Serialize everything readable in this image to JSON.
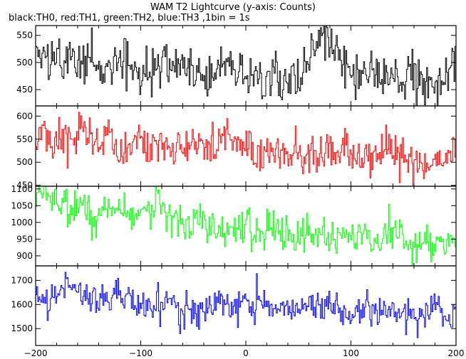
{
  "title": "WAM T2 Lightcurve (y-axis: Counts)",
  "subtitle": "black:TH0, red:TH1, green:TH2, blue:TH3 ,1bin = 1s",
  "chart_data": [
    {
      "type": "line",
      "panel": "TH0",
      "color": "#000000",
      "xlim": [
        -200,
        200
      ],
      "ylim": [
        420,
        568
      ],
      "yticks": [
        450,
        500,
        550
      ],
      "x_start": -200,
      "x_end": 200,
      "bin_seconds": 1,
      "mean_start": 505,
      "mean_end": 475,
      "noise_sd": 21,
      "values_approx": [
        515,
        505,
        500,
        498,
        495,
        490,
        500,
        488,
        482,
        495,
        480,
        470,
        478,
        550,
        480,
        476,
        474,
        472,
        470,
        488
      ]
    },
    {
      "type": "line",
      "panel": "TH1",
      "color": "#ff0000",
      "xlim": [
        -200,
        200
      ],
      "ylim": [
        448,
        622
      ],
      "yticks": [
        450,
        500,
        550,
        600
      ],
      "x_start": -200,
      "x_end": 200,
      "bin_seconds": 1,
      "mean_start": 555,
      "mean_end": 505,
      "noise_sd": 22,
      "values_approx": [
        560,
        555,
        550,
        548,
        545,
        540,
        535,
        530,
        528,
        570,
        520,
        518,
        515,
        512,
        510,
        508,
        505,
        505,
        504,
        505
      ]
    },
    {
      "type": "line",
      "panel": "TH2",
      "color": "#00ff00",
      "xlim": [
        -200,
        200
      ],
      "ylim": [
        870,
        1108
      ],
      "yticks": [
        900,
        950,
        1000,
        1050,
        1100
      ],
      "x_start": -200,
      "x_end": 200,
      "bin_seconds": 1,
      "mean_start": 1050,
      "mean_end": 940,
      "noise_sd": 28,
      "values_approx": [
        1070,
        1055,
        1040,
        1030,
        1020,
        1012,
        1005,
        998,
        990,
        985,
        978,
        970,
        965,
        960,
        955,
        950,
        948,
        945,
        942,
        940
      ]
    },
    {
      "type": "line",
      "panel": "TH3",
      "color": "#0000ff",
      "xlim": [
        -200,
        200
      ],
      "ylim": [
        1430,
        1760
      ],
      "yticks": [
        1500,
        1600,
        1700
      ],
      "x_start": -200,
      "x_end": 200,
      "bin_seconds": 1,
      "mean_start": 1640,
      "mean_end": 1550,
      "noise_sd": 35,
      "values_approx": [
        1640,
        1660,
        1650,
        1635,
        1625,
        1615,
        1605,
        1600,
        1595,
        1590,
        1585,
        1580,
        1575,
        1570,
        1565,
        1560,
        1558,
        1555,
        1552,
        1550
      ]
    }
  ],
  "xaxis": {
    "ticks": [
      -200,
      -100,
      0,
      100,
      200
    ]
  }
}
